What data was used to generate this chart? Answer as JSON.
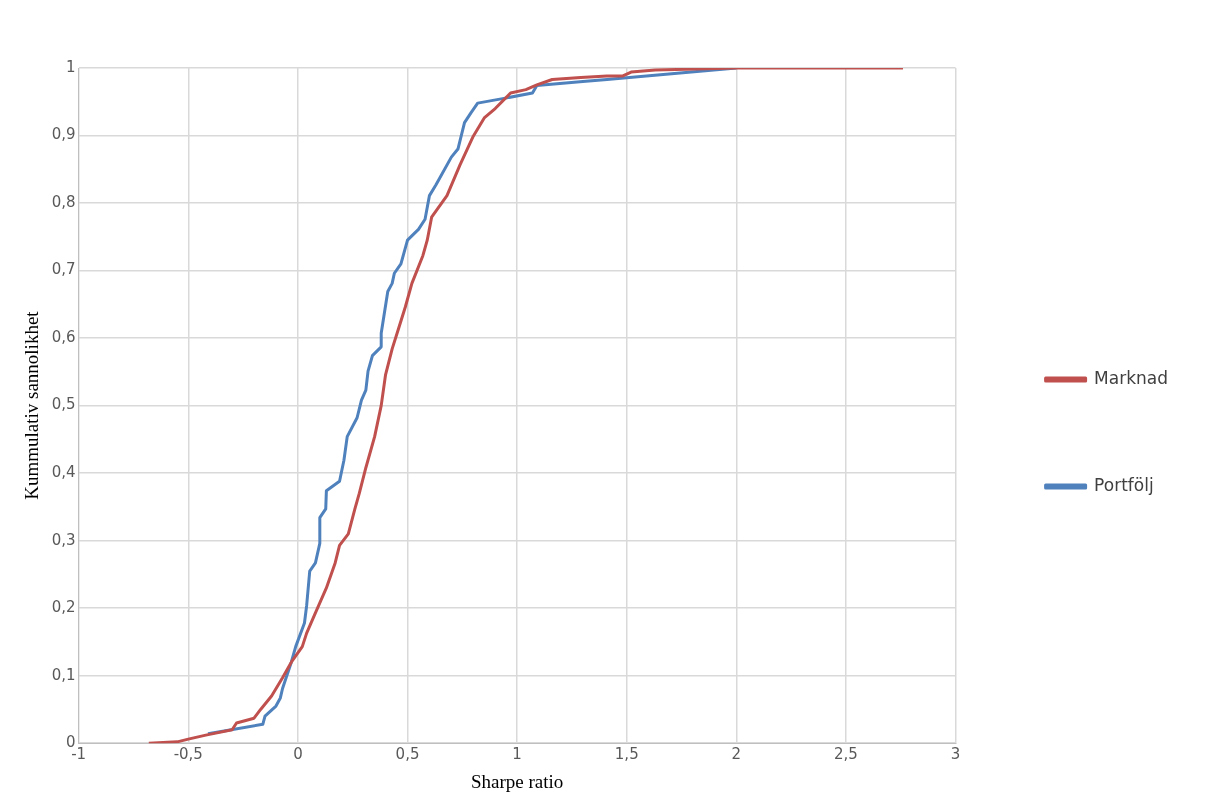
{
  "chart_data": {
    "type": "line",
    "xlabel": "Sharpe ratio",
    "ylabel": "Kummulativ sannolikhet",
    "xlim": [
      -1,
      3
    ],
    "xticks": [
      -1,
      {
        "value": -0.5,
        "label": "-0,5"
      },
      0,
      {
        "value": 0.5,
        "label": "0,5"
      },
      1,
      {
        "value": 1.5,
        "label": "1,5"
      },
      2,
      {
        "value": 2.5,
        "label": "2,5"
      },
      3
    ],
    "ylim": [
      0,
      1
    ],
    "yticks": [
      0,
      {
        "value": 0.1,
        "label": "0,1"
      },
      {
        "value": 0.2,
        "label": "0,2"
      },
      {
        "value": 0.3,
        "label": "0,3"
      },
      {
        "value": 0.4,
        "label": "0,4"
      },
      {
        "value": 0.5,
        "label": "0,5"
      },
      {
        "value": 0.6,
        "label": "0,6"
      },
      {
        "value": 0.7,
        "label": "0,7"
      },
      {
        "value": 0.8,
        "label": "0,8"
      },
      {
        "value": 0.9,
        "label": "0,9"
      },
      1
    ],
    "grid": true,
    "legend": "right",
    "marker": "none",
    "line_style": "solid",
    "series": [
      {
        "name": "Marknad",
        "color": "#c0504d",
        "x": [
          -0.68,
          -0.55,
          -0.5,
          -0.42,
          -0.3,
          -0.28,
          -0.2,
          -0.17,
          -0.12,
          -0.07,
          -0.03,
          0.02,
          0.04,
          0.08,
          0.13,
          0.17,
          0.19,
          0.23,
          0.26,
          0.28,
          0.31,
          0.35,
          0.38,
          0.4,
          0.43,
          0.46,
          0.49,
          0.52,
          0.57,
          0.59,
          0.61,
          0.68,
          0.74,
          0.8,
          0.85,
          0.9,
          0.97,
          1.04,
          1.09,
          1.16,
          1.29,
          1.41,
          1.48,
          1.52,
          1.63,
          2.0,
          2.76
        ],
        "values": [
          0,
          0.002,
          0.006,
          0.012,
          0.02,
          0.03,
          0.037,
          0.05,
          0.07,
          0.097,
          0.12,
          0.143,
          0.163,
          0.193,
          0.23,
          0.267,
          0.293,
          0.31,
          0.347,
          0.37,
          0.408,
          0.454,
          0.5,
          0.546,
          0.584,
          0.615,
          0.646,
          0.681,
          0.722,
          0.745,
          0.779,
          0.811,
          0.857,
          0.899,
          0.926,
          0.94,
          0.963,
          0.968,
          0.975,
          0.983,
          0.986,
          0.988,
          0.988,
          0.994,
          0.997,
          1,
          1
        ]
      },
      {
        "name": "Portfölj",
        "color": "#4f81bd",
        "x": [
          -0.41,
          -0.16,
          -0.15,
          -0.1,
          -0.08,
          -0.07,
          -0.03,
          -0.01,
          0.03,
          0.04,
          0.054,
          0.08,
          0.1,
          0.1,
          0.127,
          0.13,
          0.19,
          0.21,
          0.225,
          0.27,
          0.29,
          0.31,
          0.32,
          0.34,
          0.38,
          0.38,
          0.41,
          0.43,
          0.44,
          0.47,
          0.5,
          0.55,
          0.58,
          0.6,
          0.63,
          0.7,
          0.73,
          0.76,
          0.79,
          0.82,
          0.94,
          1.07,
          1.09,
          1.3,
          1.41,
          2.0
        ],
        "values": [
          0.014,
          0.028,
          0.04,
          0.055,
          0.067,
          0.081,
          0.12,
          0.143,
          0.178,
          0.204,
          0.255,
          0.267,
          0.296,
          0.334,
          0.347,
          0.374,
          0.388,
          0.419,
          0.454,
          0.482,
          0.508,
          0.523,
          0.551,
          0.574,
          0.587,
          0.607,
          0.669,
          0.681,
          0.696,
          0.71,
          0.745,
          0.761,
          0.776,
          0.811,
          0.827,
          0.868,
          0.88,
          0.919,
          0.934,
          0.948,
          0.955,
          0.963,
          0.974,
          0.98,
          0.983,
          1
        ]
      }
    ]
  }
}
